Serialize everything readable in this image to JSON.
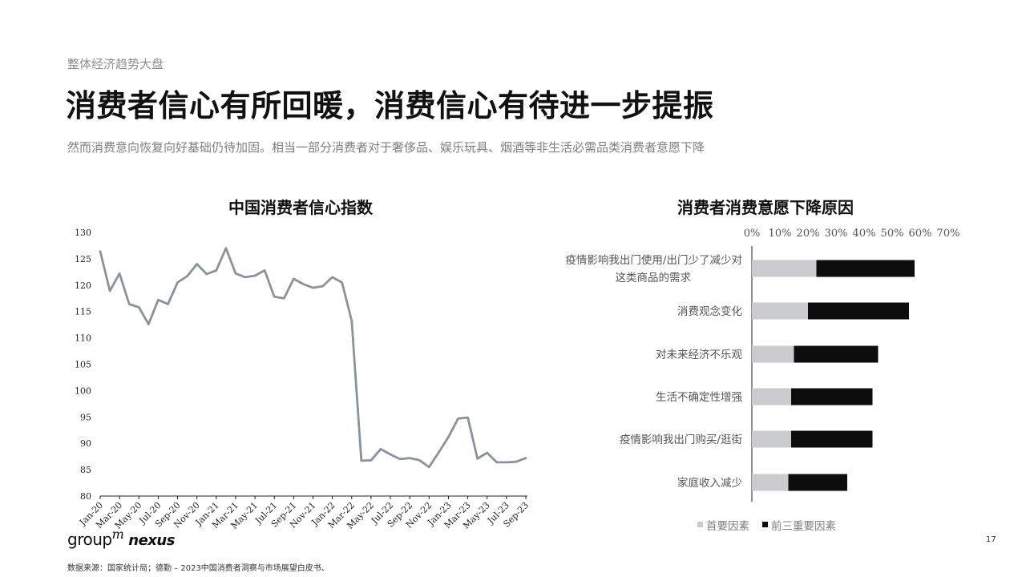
{
  "header": {
    "section_label": "整体经济趋势大盘",
    "title": "消费者信心有所回暖，消费信心有待进一步提振",
    "subtitle": "然而消费意向恢复向好基础仍待加固。相当一部分消费者对于奢侈品、娱乐玩具、烟酒等非生活必需品类消费者意愿下降"
  },
  "colors": {
    "line": "#8a929c",
    "primary_factor": "#c9cbce",
    "top3_factor": "#0d0d0d",
    "axis": "#222222"
  },
  "chart_data": [
    {
      "type": "line",
      "title": "中国消费者信心指数",
      "ylim": [
        80,
        130
      ],
      "y_ticks": [
        80,
        85,
        90,
        95,
        100,
        105,
        110,
        115,
        120,
        125,
        130
      ],
      "x_tick_labels": [
        "Jan-20",
        "Mar-20",
        "May-20",
        "Jul-20",
        "Sep-20",
        "Nov-20",
        "Jan-21",
        "Mar-21",
        "May-21",
        "Jul-21",
        "Sep-21",
        "Nov-21",
        "Jan-22",
        "Mar-22",
        "May-22",
        "Jul-22",
        "Sep-22",
        "Nov-22",
        "Jan-23",
        "Mar-23",
        "May-23",
        "Jul-23",
        "Sep-23"
      ],
      "grid": false,
      "series": [
        {
          "values": [
            126.4,
            118.9,
            122.2,
            116.4,
            115.8,
            112.6,
            117.2,
            116.4,
            120.5,
            121.7,
            124.0,
            122.1,
            122.8,
            127.0,
            122.2,
            121.5,
            121.8,
            122.8,
            117.8,
            117.5,
            121.2,
            120.2,
            119.5,
            119.8,
            121.5,
            120.5,
            113.2,
            86.7,
            86.8,
            88.9,
            87.9,
            87.0,
            87.2,
            86.8,
            85.5,
            88.3,
            91.2,
            94.7,
            94.9,
            87.1,
            88.2,
            86.4,
            86.4,
            86.5,
            87.2
          ]
        }
      ]
    },
    {
      "type": "bar",
      "orientation": "horizontal",
      "stacked": true,
      "title": "消费者消费意愿下降原因",
      "categories": [
        "疫情影响我出门使用/出门少了减少对这类商品的需求",
        "消费观念变化",
        "对未来经济不乐观",
        "生活不确定性增强",
        "疫情影响我出门购买/逛街",
        "家庭收入减少"
      ],
      "category_lines": [
        [
          "疫情影响我出门使用/出门少了减少对",
          "这类商品的需求"
        ],
        [
          "消费观念变化"
        ],
        [
          "对未来经济不乐观"
        ],
        [
          "生活不确定性增强"
        ],
        [
          "疫情影响我出门购买/逛街"
        ],
        [
          "家庭收入减少"
        ]
      ],
      "xlim": [
        0,
        70
      ],
      "x_ticks": [
        "0%",
        "10%",
        "20%",
        "30%",
        "40%",
        "50%",
        "60%",
        "70%"
      ],
      "legend_position": "bottom",
      "series": [
        {
          "name": "首要因素",
          "values": [
            23,
            20,
            15,
            14,
            14,
            13
          ]
        },
        {
          "name": "前三重要因素",
          "values": [
            35,
            36,
            30,
            29,
            29,
            21
          ]
        }
      ]
    }
  ],
  "footer": {
    "logo_group": "group",
    "logo_m": "m",
    "logo_nexus": "nexus",
    "source": "数据来源：国家统计局；德勤 – 2023中国消费者洞察与市场展望白皮书、",
    "page_number": "17"
  }
}
